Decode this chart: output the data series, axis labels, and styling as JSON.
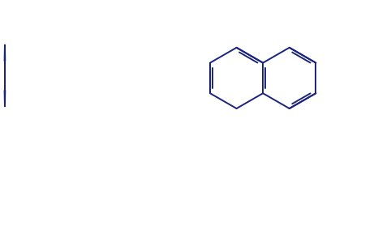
{
  "bg_color": "#ffffff",
  "line_color": "#1a237e",
  "line_width": 1.4,
  "figsize": [
    4.66,
    2.78
  ],
  "dpi": 100
}
